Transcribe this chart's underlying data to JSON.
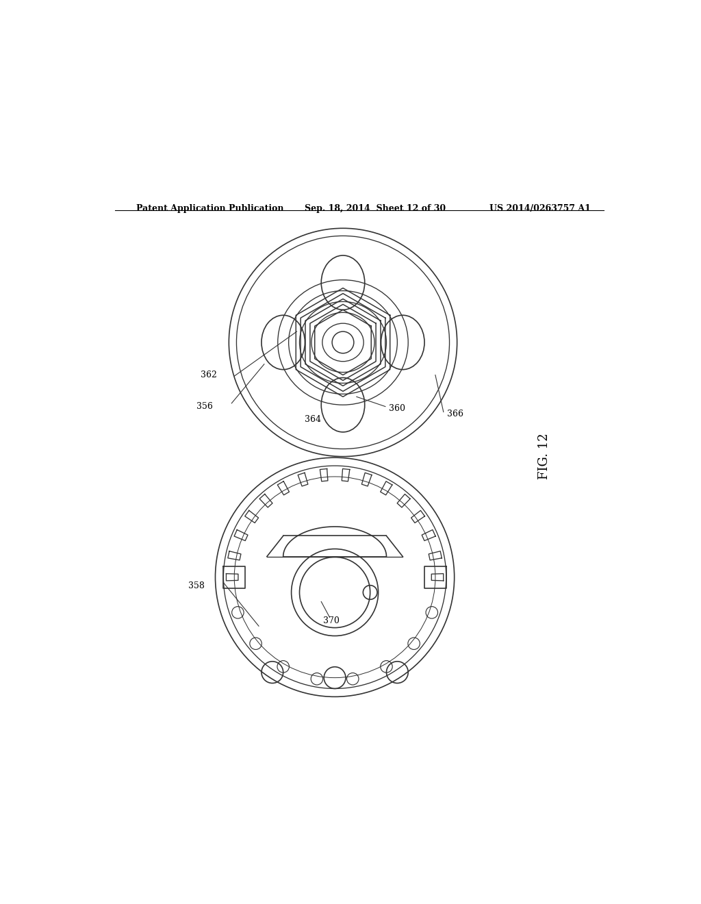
{
  "bg_color": "#ffffff",
  "header_text": "Patent Application Publication",
  "header_date": "Sep. 18, 2014  Sheet 12 of 30",
  "header_patent": "US 2014/0263757 A1",
  "fig_label": "FIG. 12",
  "line_color": "#333333",
  "line_width": 1.2
}
